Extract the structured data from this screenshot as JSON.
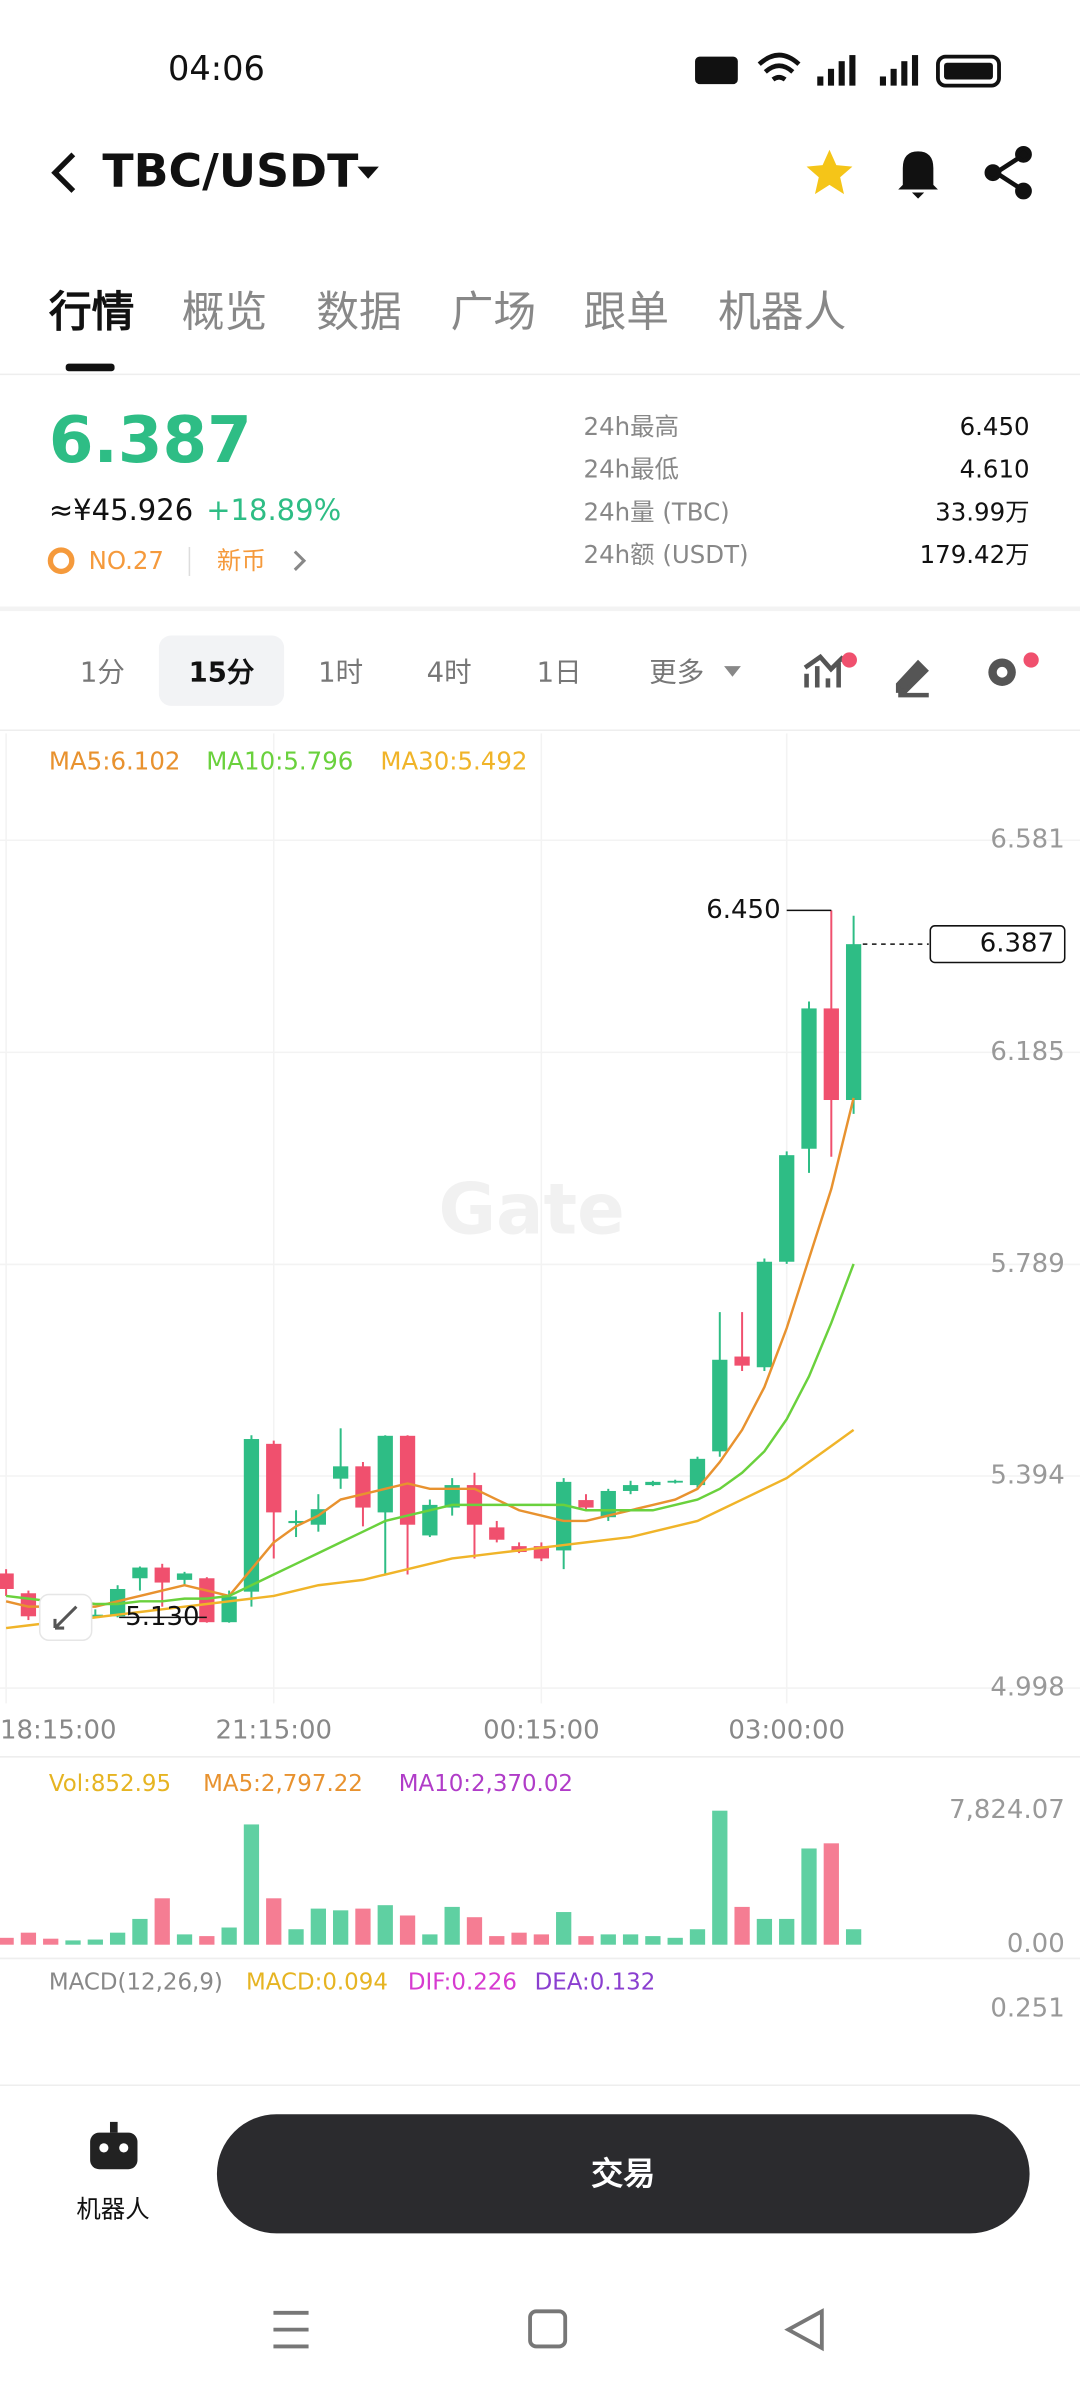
{
  "status": {
    "time": "04:06"
  },
  "header": {
    "title": "TBC/USDT"
  },
  "tabs": [
    "行情",
    "概览",
    "数据",
    "广场",
    "跟单",
    "机器人"
  ],
  "ticker": {
    "price": "6.387",
    "cny": "≈¥45.926",
    "change": "+18.89%",
    "rank": "NO.27",
    "tag": "新币",
    "stats": [
      [
        "24h最高",
        "6.450"
      ],
      [
        "24h最低",
        "4.610"
      ],
      [
        "24h量 (TBC)",
        "33.99万"
      ],
      [
        "24h额 (USDT)",
        "179.42万"
      ]
    ]
  },
  "intervals": [
    "1分",
    "15分",
    "1时",
    "4时",
    "1日",
    "更多"
  ],
  "watermark": "Gate",
  "chart_data": [
    {
      "type": "candlestick",
      "up_color": "#2ebd85",
      "down_color": "#f0506e",
      "grid": true,
      "x": [
        "18:15:00",
        null,
        null,
        null,
        null,
        null,
        null,
        null,
        null,
        null,
        null,
        null,
        "21:15:00",
        null,
        null,
        null,
        null,
        null,
        null,
        null,
        null,
        null,
        null,
        null,
        "00:15:00",
        null,
        null,
        null,
        null,
        null,
        null,
        null,
        null,
        null,
        null,
        "03:00:00",
        null,
        null,
        null
      ],
      "open": [
        5.212,
        5.175,
        5.15,
        5.14,
        5.132,
        5.132,
        5.203,
        5.223,
        5.2,
        5.203,
        5.121,
        5.178,
        5.454,
        5.306,
        5.303,
        5.389,
        5.412,
        5.326,
        5.469,
        5.283,
        5.335,
        5.377,
        5.298,
        5.263,
        5.263,
        5.255,
        5.349,
        5.317,
        5.366,
        5.377,
        5.383,
        5.377,
        5.44,
        5.617,
        5.597,
        5.794,
        6.005,
        6.267,
        6.096
      ],
      "high": [
        5.22,
        5.18,
        5.155,
        5.15,
        5.145,
        5.19,
        5.225,
        5.23,
        5.215,
        5.205,
        5.18,
        5.47,
        5.46,
        5.33,
        5.36,
        5.483,
        5.42,
        5.47,
        5.47,
        5.35,
        5.39,
        5.4,
        5.31,
        5.27,
        5.27,
        5.39,
        5.36,
        5.37,
        5.385,
        5.385,
        5.387,
        5.43,
        5.7,
        5.7,
        5.8,
        6.0,
        6.28,
        6.45,
        6.44
      ],
      "low": [
        5.17,
        5.125,
        5.14,
        5.135,
        5.13,
        5.13,
        5.18,
        5.15,
        5.19,
        5.12,
        5.12,
        5.15,
        5.24,
        5.28,
        5.29,
        5.37,
        5.3,
        5.21,
        5.21,
        5.28,
        5.32,
        5.24,
        5.27,
        5.25,
        5.235,
        5.22,
        5.33,
        5.31,
        5.36,
        5.375,
        5.38,
        5.37,
        5.43,
        5.59,
        5.59,
        5.79,
        5.96,
        5.99,
        6.07
      ],
      "close": [
        5.183,
        5.132,
        5.145,
        5.145,
        5.135,
        5.183,
        5.223,
        5.195,
        5.212,
        5.121,
        5.169,
        5.463,
        5.326,
        5.31,
        5.332,
        5.412,
        5.335,
        5.469,
        5.303,
        5.34,
        5.377,
        5.303,
        5.275,
        5.252,
        5.24,
        5.383,
        5.335,
        5.366,
        5.377,
        5.383,
        5.385,
        5.426,
        5.611,
        5.6,
        5.794,
        5.993,
        6.267,
        6.096,
        6.387
      ],
      "ylim": [
        4.998,
        6.581
      ],
      "yticks": [
        6.581,
        6.185,
        5.789,
        5.394,
        4.998
      ],
      "ma": [
        {
          "label": "MA5:6.102",
          "color": "#e8922f",
          "values": [
            5.16,
            5.15,
            5.15,
            5.15,
            5.15,
            5.16,
            5.17,
            5.18,
            5.19,
            5.18,
            5.17,
            5.22,
            5.27,
            5.3,
            5.32,
            5.35,
            5.36,
            5.37,
            5.38,
            5.37,
            5.37,
            5.37,
            5.35,
            5.33,
            5.32,
            5.31,
            5.31,
            5.32,
            5.33,
            5.34,
            5.35,
            5.37,
            5.42,
            5.48,
            5.56,
            5.67,
            5.8,
            5.93,
            6.1
          ]
        },
        {
          "label": "MA10:5.796",
          "color": "#6ad13d",
          "values": [
            5.17,
            5.165,
            5.16,
            5.16,
            5.155,
            5.155,
            5.16,
            5.16,
            5.165,
            5.165,
            5.17,
            5.19,
            5.21,
            5.23,
            5.25,
            5.27,
            5.29,
            5.31,
            5.32,
            5.33,
            5.34,
            5.34,
            5.34,
            5.34,
            5.34,
            5.34,
            5.33,
            5.33,
            5.33,
            5.33,
            5.34,
            5.35,
            5.37,
            5.4,
            5.44,
            5.5,
            5.58,
            5.68,
            5.79
          ]
        },
        {
          "label": "MA30:5.492",
          "color": "#f0b429",
          "values": [
            5.11,
            5.115,
            5.12,
            5.125,
            5.13,
            5.135,
            5.14,
            5.145,
            5.15,
            5.155,
            5.16,
            5.165,
            5.17,
            5.18,
            5.19,
            5.195,
            5.2,
            5.21,
            5.22,
            5.23,
            5.24,
            5.245,
            5.25,
            5.255,
            5.26,
            5.265,
            5.27,
            5.275,
            5.28,
            5.29,
            5.3,
            5.31,
            5.33,
            5.35,
            5.37,
            5.39,
            5.42,
            5.45,
            5.48
          ]
        }
      ],
      "last_price": 6.387,
      "high_marker": {
        "value": 6.45,
        "label": "6.450"
      },
      "low_marker": {
        "value": 5.13,
        "label": "5.130"
      }
    },
    {
      "type": "bar",
      "legend": [
        {
          "text": "Vol:852.95",
          "color": "#e6b422"
        },
        {
          "text": "MA5:2,797.22",
          "color": "#e8922f"
        },
        {
          "text": "MA10:2,370.02",
          "color": "#b03cc8"
        }
      ],
      "values": [
        400,
        700,
        350,
        250,
        300,
        700,
        1500,
        2700,
        600,
        500,
        1000,
        7000,
        2700,
        900,
        2100,
        2000,
        2100,
        2300,
        1700,
        600,
        2200,
        1600,
        500,
        700,
        600,
        1900,
        500,
        600,
        600,
        500,
        400,
        900,
        7800,
        2200,
        1500,
        1500,
        5600,
        5900,
        900
      ],
      "ylim": [
        0,
        7824.07
      ],
      "yticks": [
        {
          "value": 0,
          "label": "0.00"
        },
        {
          "value": 7824.07,
          "label": "7,824.07"
        }
      ]
    },
    {
      "type": "macd",
      "legend": [
        {
          "text": "MACD(12,26,9)",
          "color": "#888888"
        },
        {
          "text": "MACD:0.094",
          "color": "#e6b422"
        },
        {
          "text": "DIF:0.226",
          "color": "#d63bd0"
        },
        {
          "text": "DEA:0.132",
          "color": "#8a3fd0"
        }
      ],
      "yticks": [
        0.251
      ]
    }
  ],
  "footer": {
    "robot": "机器人",
    "trade": "交易"
  }
}
